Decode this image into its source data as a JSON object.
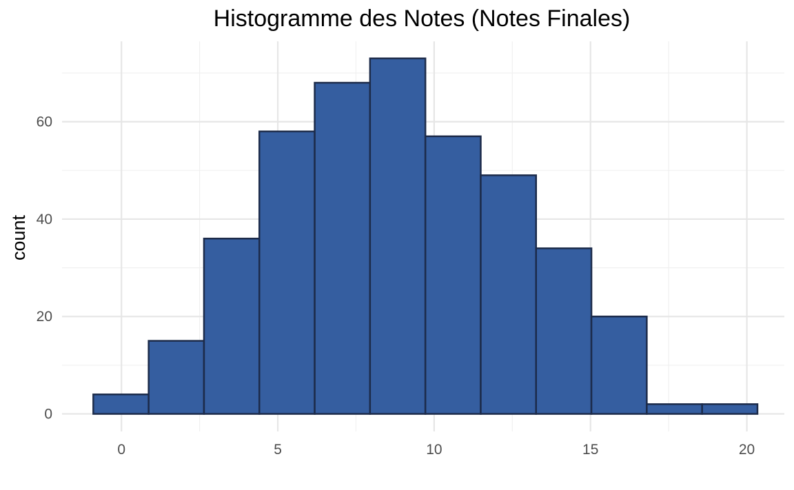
{
  "chart_data": {
    "type": "histogram",
    "title": "Histogramme des Notes (Notes Finales)",
    "xlabel": "",
    "ylabel": "count",
    "xlim": [
      -1.9,
      21.2
    ],
    "ylim": [
      -3.6,
      76.5
    ],
    "x_ticks": [
      0,
      5,
      10,
      15,
      20
    ],
    "y_ticks": [
      0,
      20,
      40,
      60
    ],
    "grid": true,
    "bin_edges": [
      -0.9,
      0.87,
      2.64,
      4.41,
      6.18,
      7.95,
      9.72,
      11.49,
      13.26,
      15.03,
      16.8,
      18.57,
      20.34
    ],
    "values": [
      4,
      15,
      36,
      58,
      68,
      73,
      57,
      49,
      34,
      20,
      2,
      2
    ],
    "colors": {
      "fill": "#355ea0",
      "outline": "#1c2b4a",
      "grid": "#e6e6e6",
      "tick_text": "#4d4d4d"
    }
  }
}
